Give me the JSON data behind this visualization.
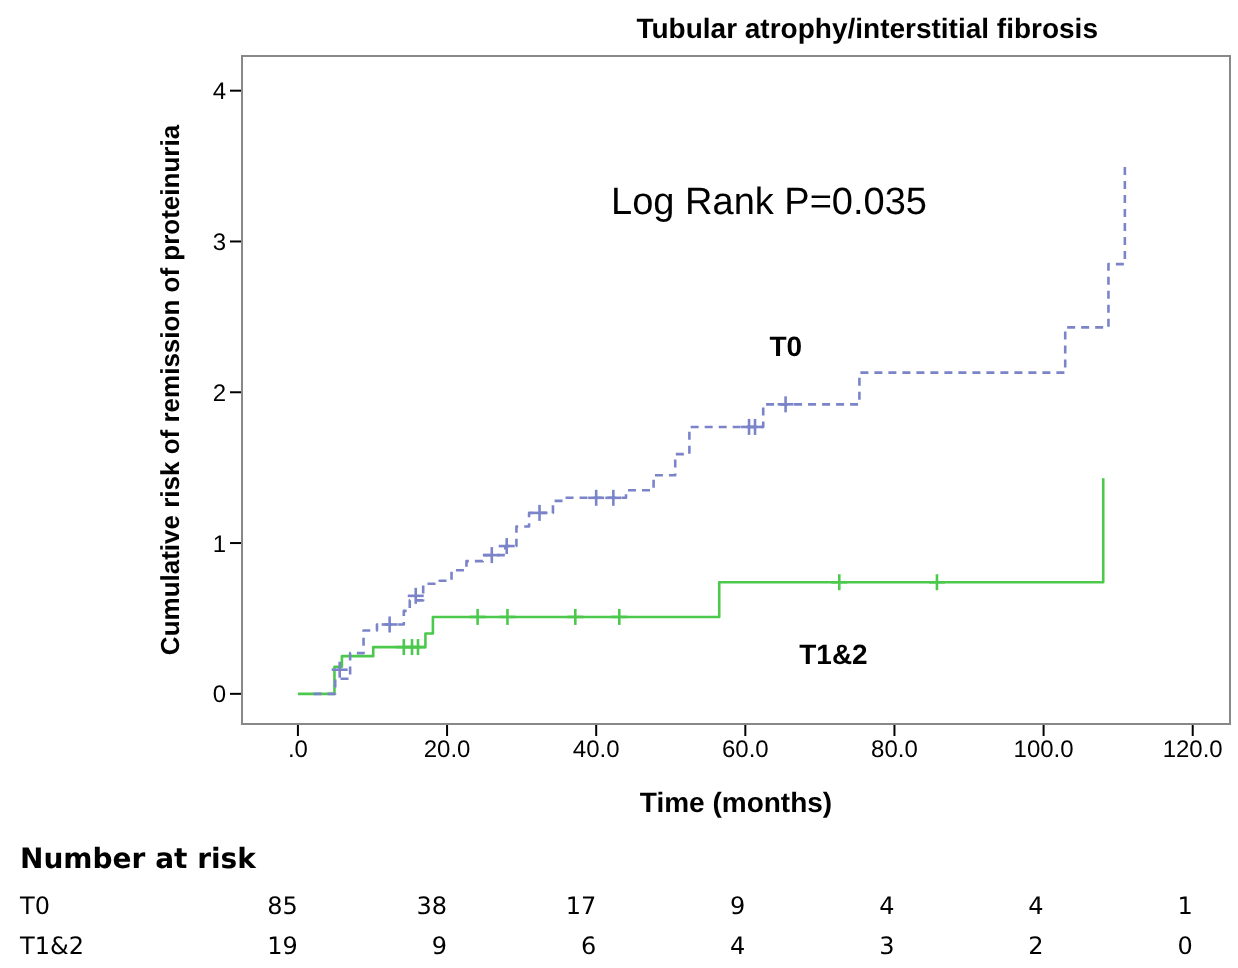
{
  "chart_data": {
    "type": "step",
    "title": "Tubular atrophy/interstitial fibrosis",
    "xlabel": "Time (months)",
    "ylabel": "Cumulative risk of remission of proteinuria",
    "xlim": [
      -7.5,
      125
    ],
    "ylim": [
      -0.2,
      4.23
    ],
    "xticks": [
      {
        "value": 0,
        "label": ".0"
      },
      {
        "value": 20,
        "label": "20.0"
      },
      {
        "value": 40,
        "label": "40.0"
      },
      {
        "value": 60,
        "label": "60.0"
      },
      {
        "value": 80,
        "label": "80.0"
      },
      {
        "value": 100,
        "label": "100.0"
      },
      {
        "value": 120,
        "label": "120.0"
      }
    ],
    "yticks": [
      0,
      1,
      2,
      3,
      4
    ],
    "grid": false,
    "legend": false,
    "annotations": [
      "Log Rank P=0.035",
      "Number at risk",
      "T0",
      "85",
      "38",
      "17",
      "9",
      "4",
      "4",
      "1",
      "T1&2",
      "19",
      "9",
      "6",
      "4",
      "3",
      "2",
      "0"
    ],
    "series": [
      {
        "name": "T0",
        "color": "#7b84c9",
        "line_style": "dashed",
        "marker": "none",
        "x": [
          2.1,
          5,
          7,
          8.8,
          10.6,
          14.2,
          15,
          16.8,
          19,
          20.6,
          22.6,
          24.8,
          27.8,
          29.3,
          31,
          34.2,
          35.6,
          44,
          47.7,
          50.6,
          52.5,
          62.4,
          75.3,
          102.9,
          108.7,
          110.9
        ],
        "values": [
          0,
          0.1,
          0.27,
          0.42,
          0.46,
          0.55,
          0.62,
          0.73,
          0.75,
          0.82,
          0.88,
          0.92,
          0.98,
          1.11,
          1.2,
          1.28,
          1.3,
          1.35,
          1.45,
          1.59,
          1.77,
          1.92,
          2.13,
          2.43,
          2.85,
          3.53
        ]
      },
      {
        "name": "T1&2",
        "color": "#4cc94c",
        "line_style": "solid",
        "marker": "none",
        "x": [
          0,
          4.9,
          5.9,
          10.1,
          17.1,
          18.1,
          56.5,
          108,
          108
        ],
        "values": [
          0,
          0.18,
          0.25,
          0.31,
          0.4,
          0.51,
          0.74,
          0.74,
          1.43
        ]
      },
      {
        "type": "scatter",
        "color": "#7b84c9",
        "marker": "cross",
        "x": [
          5.6,
          12.3,
          15.8,
          26,
          28,
          32.4,
          40,
          42.3,
          60.5,
          61.3,
          65.4
        ],
        "values": [
          0.16,
          0.46,
          0.65,
          0.92,
          0.98,
          1.2,
          1.3,
          1.3,
          1.77,
          1.77,
          1.92
        ]
      },
      {
        "type": "scatter",
        "color": "#4cc94c",
        "marker": "cross",
        "x": [
          14.2,
          15.3,
          16.1,
          24.1,
          28.1,
          37.2,
          43.1,
          72.6,
          85.7
        ],
        "values": [
          0.31,
          0.31,
          0.31,
          0.51,
          0.51,
          0.51,
          0.51,
          0.74,
          0.74
        ]
      }
    ]
  }
}
